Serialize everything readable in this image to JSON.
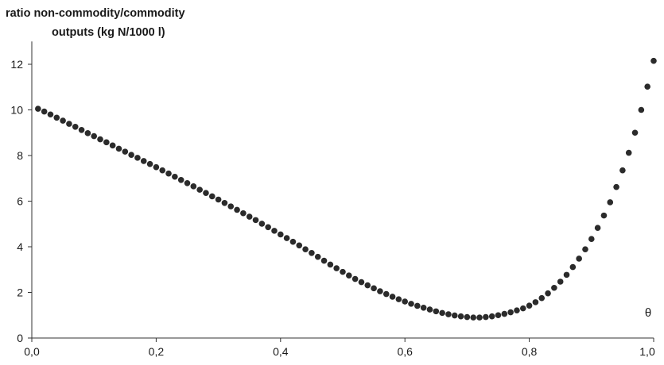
{
  "chart_data": {
    "type": "scatter",
    "title_line1": "ratio non-commodity/commodity",
    "title_line2": "outputs (kg N/1000 l)",
    "xlabel": "θ",
    "ylabel": "",
    "xlim": [
      0,
      1
    ],
    "ylim": [
      0,
      13
    ],
    "xticks": [
      0,
      0.2,
      0.4,
      0.6,
      0.8,
      1.0
    ],
    "xtick_labels": [
      "0,0",
      "0,2",
      "0,4",
      "0,6",
      "0,8",
      "1,0"
    ],
    "yticks": [
      0,
      2,
      4,
      6,
      8,
      10,
      12
    ],
    "ytick_labels": [
      "0",
      "2",
      "4",
      "6",
      "8",
      "10",
      "12"
    ],
    "grid": false,
    "marker_color": "#2b2b2b",
    "x": [
      0.01,
      0.02,
      0.03,
      0.04,
      0.05,
      0.06,
      0.07,
      0.08,
      0.09,
      0.1,
      0.11,
      0.12,
      0.13,
      0.14,
      0.15,
      0.16,
      0.17,
      0.18,
      0.19,
      0.2,
      0.21,
      0.22,
      0.23,
      0.24,
      0.25,
      0.26,
      0.27,
      0.28,
      0.29,
      0.3,
      0.31,
      0.32,
      0.33,
      0.34,
      0.35,
      0.36,
      0.37,
      0.38,
      0.39,
      0.4,
      0.41,
      0.42,
      0.43,
      0.44,
      0.45,
      0.46,
      0.47,
      0.48,
      0.49,
      0.5,
      0.51,
      0.52,
      0.53,
      0.54,
      0.55,
      0.56,
      0.57,
      0.58,
      0.59,
      0.6,
      0.61,
      0.62,
      0.63,
      0.64,
      0.65,
      0.66,
      0.67,
      0.68,
      0.69,
      0.7,
      0.71,
      0.72,
      0.73,
      0.74,
      0.75,
      0.76,
      0.77,
      0.78,
      0.79,
      0.8,
      0.81,
      0.82,
      0.83,
      0.84,
      0.85,
      0.86,
      0.87,
      0.88,
      0.89,
      0.9,
      0.91,
      0.92,
      0.93,
      0.94,
      0.95,
      0.96,
      0.97,
      0.98,
      0.99,
      1.0
    ],
    "y": [
      10.05,
      9.93,
      9.8,
      9.66,
      9.53,
      9.39,
      9.26,
      9.12,
      8.98,
      8.85,
      8.71,
      8.58,
      8.44,
      8.3,
      8.17,
      8.03,
      7.9,
      7.76,
      7.63,
      7.49,
      7.35,
      7.21,
      7.07,
      6.93,
      6.79,
      6.65,
      6.5,
      6.36,
      6.21,
      6.07,
      5.92,
      5.77,
      5.62,
      5.47,
      5.32,
      5.17,
      5.01,
      4.86,
      4.7,
      4.54,
      4.38,
      4.22,
      4.06,
      3.89,
      3.73,
      3.56,
      3.39,
      3.22,
      3.06,
      2.9,
      2.74,
      2.59,
      2.45,
      2.31,
      2.18,
      2.05,
      1.93,
      1.81,
      1.7,
      1.6,
      1.5,
      1.41,
      1.33,
      1.25,
      1.17,
      1.1,
      1.04,
      0.99,
      0.95,
      0.92,
      0.9,
      0.9,
      0.92,
      0.95,
      1.0,
      1.06,
      1.13,
      1.21,
      1.3,
      1.42,
      1.57,
      1.75,
      1.96,
      2.2,
      2.47,
      2.77,
      3.11,
      3.48,
      3.89,
      4.34,
      4.83,
      5.37,
      5.95,
      6.62,
      7.35,
      8.12,
      9.0,
      10.0,
      11.02,
      12.15
    ]
  }
}
